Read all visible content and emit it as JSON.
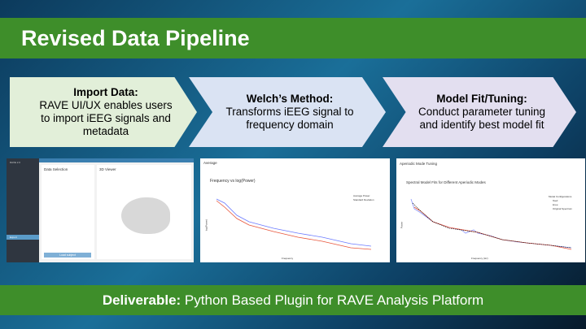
{
  "title": "Revised Data Pipeline",
  "steps": [
    {
      "heading": "Import Data:",
      "body": "RAVE UI/UX enables users to import iEEG signals and metadata"
    },
    {
      "heading": "Welch’s Method:",
      "body": "Transforms iEEG signal to frequency domain"
    },
    {
      "heading": "Model Fit/Tuning:",
      "body": "Conduct parameter tuning and identify best model fit"
    }
  ],
  "screens": {
    "rave": {
      "app": "RAVE 2.0",
      "panel": "Data Selection",
      "viewer": "3D Viewer",
      "load_button": "Load subject",
      "active_item": "Export"
    },
    "welch": {
      "panel": "Average",
      "chart_title": "Frequency vs log(Power)",
      "xlabel": "Frequency",
      "ylabel": "log(Power)",
      "legend": [
        "Average Power",
        "Standard Deviation"
      ],
      "colors": [
        "#6b7bff",
        "#e8553a"
      ]
    },
    "fit": {
      "panel": "Aperiodic Mode Tuning",
      "chart_title": "Spectral Model Fits for Different Aperiodic Modes",
      "xlabel": "Frequency (Hz)",
      "ylabel": "Power",
      "legend_title": "Model Configurations",
      "legend": [
        "fixed",
        "knee",
        "Original Spectrum"
      ]
    }
  },
  "deliverable": {
    "label": "Deliverable:",
    "text": " Python Based Plugin for RAVE Analysis Platform"
  }
}
